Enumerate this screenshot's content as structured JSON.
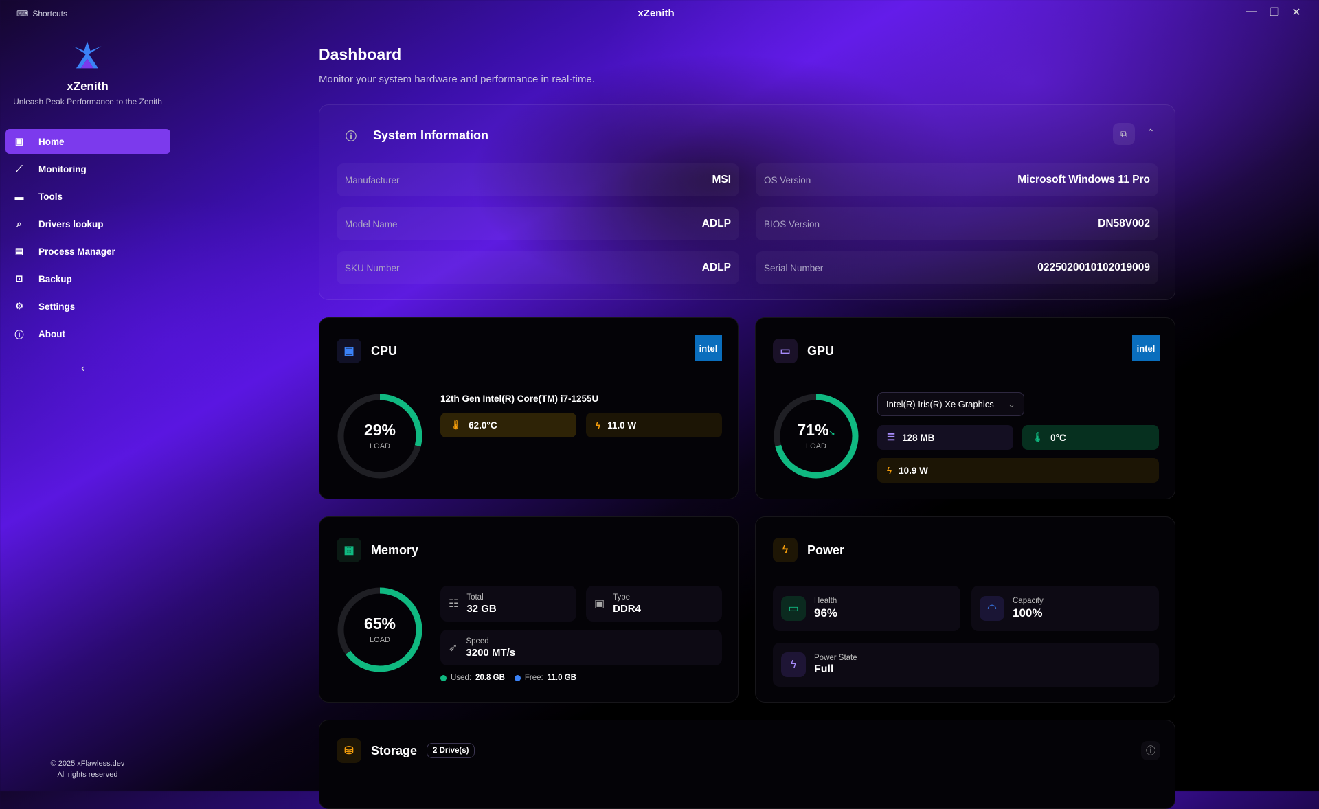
{
  "window": {
    "title": "xZenith",
    "shortcuts": "Shortcuts",
    "min": "—",
    "max": "❐",
    "close": "✕"
  },
  "sidebar": {
    "brand": "xZenith",
    "tagline": "Unleash Peak Performance to the Zenith",
    "items": [
      {
        "label": "Home",
        "icon": "▣"
      },
      {
        "label": "Monitoring",
        "icon": "⟋"
      },
      {
        "label": "Tools",
        "icon": "▬"
      },
      {
        "label": "Drivers lookup",
        "icon": "⌕"
      },
      {
        "label": "Process Manager",
        "icon": "▤"
      },
      {
        "label": "Backup",
        "icon": "⊡"
      },
      {
        "label": "Settings",
        "icon": "⚙"
      },
      {
        "label": "About",
        "icon": "ⓘ"
      }
    ],
    "collapse": "‹",
    "footer1": "© 2025 xFlawless.dev",
    "footer2": "All rights reserved"
  },
  "page": {
    "title": "Dashboard",
    "subtitle": "Monitor your system hardware and performance in real-time."
  },
  "sysinfo": {
    "title": "System Information",
    "rows": [
      {
        "k": "Manufacturer",
        "v": "MSI"
      },
      {
        "k": "OS Version",
        "v": "Microsoft Windows 11 Pro"
      },
      {
        "k": "Model Name",
        "v": "ADLP"
      },
      {
        "k": "BIOS Version",
        "v": "DN58V002"
      },
      {
        "k": "SKU Number",
        "v": "ADLP"
      },
      {
        "k": "Serial Number",
        "v": "02250200101020190​09"
      }
    ]
  },
  "cpu": {
    "title": "CPU",
    "brand": "intel",
    "load": 29,
    "load_text": "29%",
    "load_label": "LOAD",
    "name": "12th Gen Intel(R) Core(TM) i7-1255U",
    "temp": "62.0°C",
    "power": "11.0 W"
  },
  "gpu": {
    "title": "GPU",
    "brand": "intel",
    "load": 71,
    "load_text": "71%",
    "load_label": "LOAD",
    "selected": "Intel(R) Iris(R) Xe Graphics",
    "vram": "128 MB",
    "temp": "0°C",
    "power": "10.9 W"
  },
  "memory": {
    "title": "Memory",
    "load": 65,
    "load_text": "65%",
    "load_label": "LOAD",
    "total_label": "Total",
    "total": "32 GB",
    "type_label": "Type",
    "type": "DDR4",
    "speed_label": "Speed",
    "speed": "3200 MT/s",
    "used_label": "Used:",
    "used": "20.8 GB",
    "free_label": "Free:",
    "free": "11.0 GB"
  },
  "power": {
    "title": "Power",
    "health_label": "Health",
    "health": "96%",
    "capacity_label": "Capacity",
    "capacity": "100%",
    "state_label": "Power State",
    "state": "Full"
  },
  "storage": {
    "title": "Storage",
    "badge": "2 Drive(s)"
  },
  "colors": {
    "accent": "#7c3aed",
    "green": "#10b981",
    "amber": "#f59e0b",
    "blue": "#3b82f6"
  }
}
